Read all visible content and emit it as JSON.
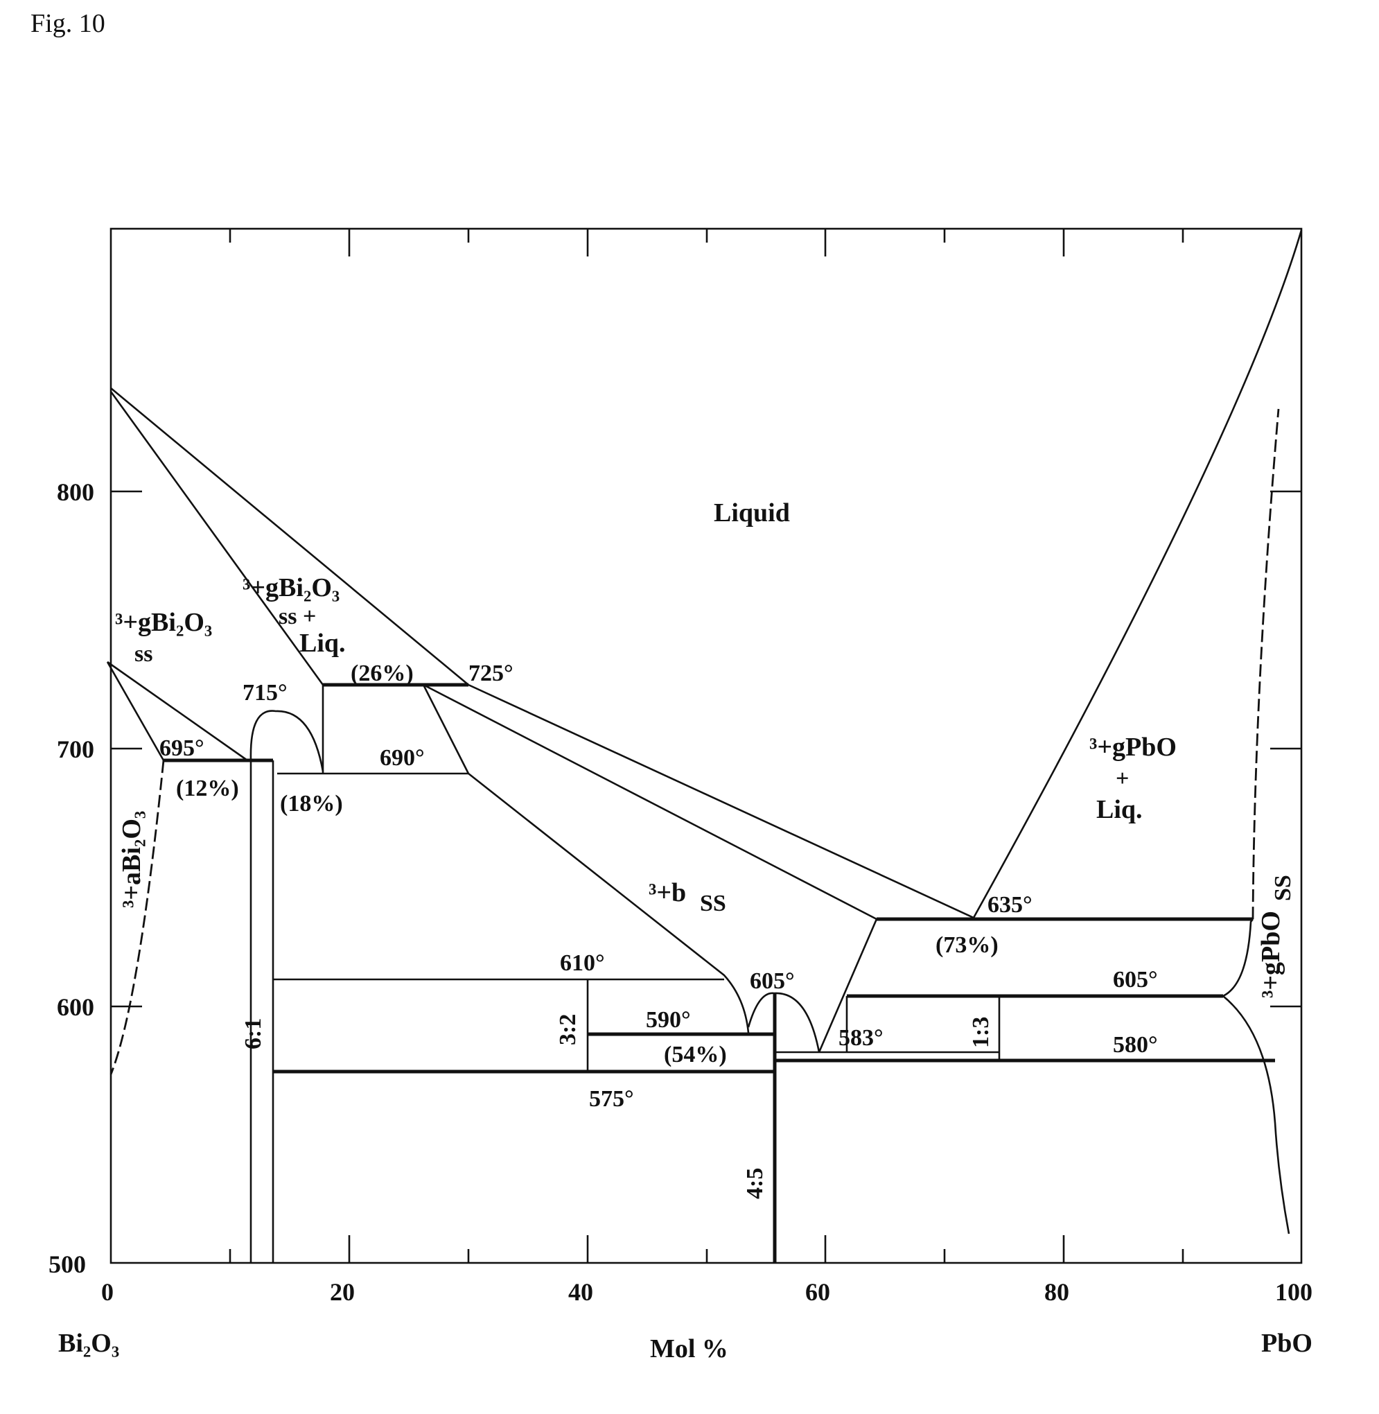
{
  "figure_label": "Fig. 10",
  "axes": {
    "x_label": "Mol %",
    "x_ticks": [
      "0",
      "20",
      "40",
      "60",
      "80",
      "100"
    ],
    "y_ticks": [
      "800",
      "700",
      "600",
      "500"
    ],
    "x_range": [
      0,
      100
    ],
    "y_range": [
      500,
      900
    ],
    "left_end": "Bi₂O₃",
    "right_end": "PbO"
  },
  "phase_regions": {
    "liquid": "Liquid",
    "bi2o3_gamma_ss": "³+gBi₂O₃",
    "bi2o3_gamma_ss_sub": "ss",
    "bi2o3_gamma_liq_a": "³+gBi₂O₃",
    "bi2o3_gamma_liq_b": "ss +",
    "bi2o3_gamma_liq_c": "Liq.",
    "bi2o3_alpha": "³+aBi₂O₃",
    "beta_ss": "³+b",
    "beta_ss_sub": "SS",
    "pbo_liq_a": "³+gPbO",
    "pbo_liq_b": "+",
    "pbo_liq_c": "Liq.",
    "pbo_ss": "³+gPbO",
    "pbo_ss_sub": "SS"
  },
  "temperatures": {
    "t725": "725°",
    "t715": "715°",
    "t695": "695°",
    "t690": "690°",
    "t635": "635°",
    "t610": "610°",
    "t605a": "605°",
    "t605b": "605°",
    "t590": "590°",
    "t583": "583°",
    "t580": "580°",
    "t575": "575°"
  },
  "compositions": {
    "c26": "(26%)",
    "c12": "(12%)",
    "c18": "(18%)",
    "c73": "(73%)",
    "c54": "(54%)"
  },
  "compounds": {
    "r61": "6:1",
    "r32": "3:2",
    "r45": "4:5",
    "r13": "1:3"
  }
}
